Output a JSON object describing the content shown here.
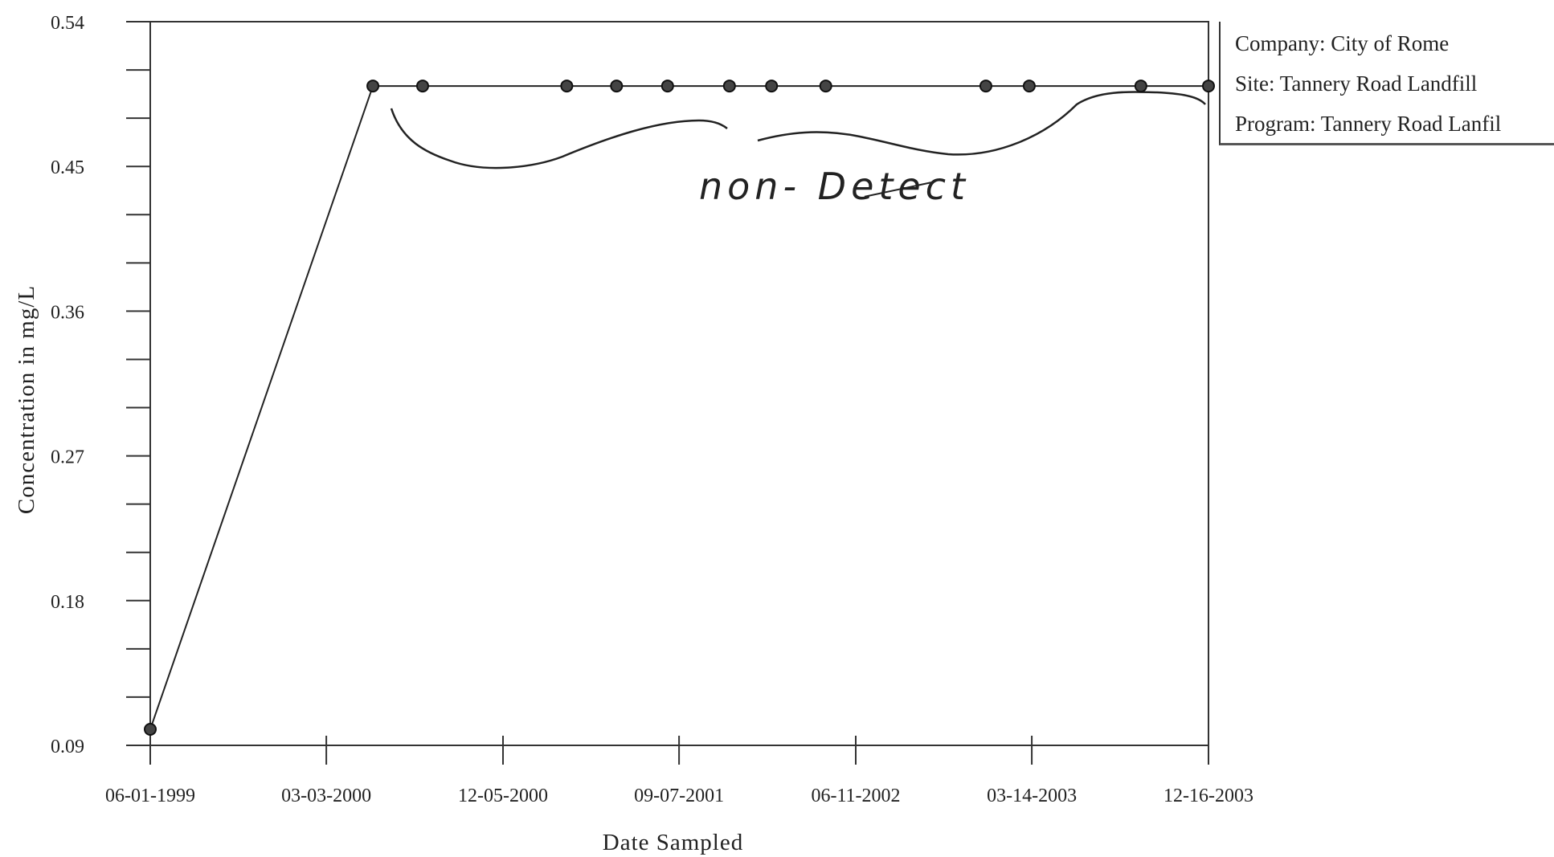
{
  "legend": {
    "company": "Company: City of Rome",
    "site": "Site: Tannery Road Landfill",
    "program": "Program: Tannery Road Lanfil"
  },
  "annotation": {
    "text": "non- Detect"
  },
  "chart_data": {
    "type": "line",
    "title": "",
    "xlabel": "Date Sampled",
    "ylabel": "Concentration in mg/L",
    "xlim": [
      "1999-06-01",
      "2003-12-16"
    ],
    "ylim": [
      0.09,
      0.54
    ],
    "x_ticks": [
      "06-01-1999",
      "03-03-2000",
      "12-05-2000",
      "09-07-2001",
      "06-11-2002",
      "03-14-2003",
      "12-16-2003"
    ],
    "y_ticks": [
      "0.09",
      "0.18",
      "0.27",
      "0.36",
      "0.45",
      "0.54"
    ],
    "grid": false,
    "legend_placement": "top-right, outside plot",
    "series": [
      {
        "x": [
          "1999-06-01",
          "2000-05-15",
          "2000-08-01",
          "2001-03-15",
          "2001-06-01",
          "2001-08-20",
          "2001-11-25",
          "2002-01-30",
          "2002-04-25",
          "2003-01-01",
          "2003-03-10",
          "2003-09-01"
        ],
        "values": [
          0.1,
          0.5,
          0.5,
          0.5,
          0.5,
          0.5,
          0.5,
          0.5,
          0.5,
          0.5,
          0.5,
          0.5
        ]
      }
    ]
  }
}
